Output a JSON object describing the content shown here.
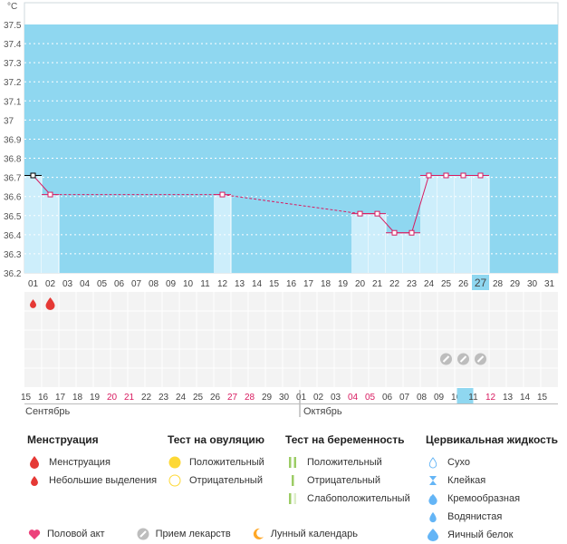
{
  "chart_data": {
    "type": "line",
    "unit_label": "°C",
    "ylim": [
      36.2,
      37.5
    ],
    "yticks": [
      "37.5",
      "37.4",
      "37.3",
      "37.2",
      "37.1",
      "37",
      "36.9",
      "36.8",
      "36.7",
      "36.6",
      "36.5",
      "36.4",
      "36.3",
      "36.2"
    ],
    "day_labels": [
      "01",
      "02",
      "03",
      "04",
      "05",
      "06",
      "07",
      "08",
      "09",
      "10",
      "11",
      "12",
      "13",
      "14",
      "15",
      "16",
      "17",
      "18",
      "19",
      "20",
      "21",
      "22",
      "23",
      "24",
      "25",
      "26",
      "27",
      "28",
      "29",
      "30",
      "31"
    ],
    "highlight_day": "27",
    "date_labels": [
      {
        "t": "15",
        "red": false
      },
      {
        "t": "16",
        "red": false
      },
      {
        "t": "17",
        "red": false
      },
      {
        "t": "18",
        "red": false
      },
      {
        "t": "19",
        "red": false
      },
      {
        "t": "20",
        "red": true
      },
      {
        "t": "21",
        "red": true
      },
      {
        "t": "22",
        "red": false
      },
      {
        "t": "23",
        "red": false
      },
      {
        "t": "24",
        "red": false
      },
      {
        "t": "25",
        "red": false
      },
      {
        "t": "26",
        "red": false
      },
      {
        "t": "27",
        "red": true
      },
      {
        "t": "28",
        "red": true
      },
      {
        "t": "29",
        "red": false
      },
      {
        "t": "30",
        "red": false
      },
      {
        "t": "01",
        "red": false
      },
      {
        "t": "02",
        "red": false
      },
      {
        "t": "03",
        "red": false
      },
      {
        "t": "04",
        "red": true
      },
      {
        "t": "05",
        "red": true
      },
      {
        "t": "06",
        "red": false
      },
      {
        "t": "07",
        "red": false
      },
      {
        "t": "08",
        "red": false
      },
      {
        "t": "09",
        "red": false
      },
      {
        "t": "10",
        "red": false
      },
      {
        "t": "11",
        "red": false
      },
      {
        "t": "12",
        "red": true
      },
      {
        "t": "13",
        "red": false
      },
      {
        "t": "14",
        "red": false
      },
      {
        "t": "15",
        "red": false
      }
    ],
    "highlight_date_index": 26,
    "month_left": "Сентябрь",
    "month_right": "Октябрь",
    "points": [
      {
        "day": 1,
        "temp": 36.71
      },
      {
        "day": 2,
        "temp": 36.61
      },
      {
        "day": 12,
        "temp": 36.61
      },
      {
        "day": 20,
        "temp": 36.51
      },
      {
        "day": 21,
        "temp": 36.51
      },
      {
        "day": 22,
        "temp": 36.41
      },
      {
        "day": 23,
        "temp": 36.41
      },
      {
        "day": 24,
        "temp": 36.71
      },
      {
        "day": 25,
        "temp": 36.71
      },
      {
        "day": 26,
        "temp": 36.71
      },
      {
        "day": 27,
        "temp": 36.71
      }
    ],
    "dashed_segments": [
      [
        2,
        12
      ],
      [
        12,
        20
      ]
    ],
    "bleeding_days": [
      {
        "day": 1,
        "size": "small"
      },
      {
        "day": 2,
        "size": "large"
      }
    ],
    "medication_days": [
      25,
      26,
      27
    ],
    "colors": {
      "bg": "#8fd7f0",
      "bar": "#cdeefb",
      "line": "#d81b60",
      "highlight": "#8fd7f0",
      "red_text": "#d81b60",
      "blood": "#e53935"
    }
  },
  "legend": {
    "menstruation": {
      "title": "Менструация",
      "items": [
        "Менструация",
        "Небольшие выделения"
      ]
    },
    "ovulation": {
      "title": "Тест на овуляцию",
      "items": [
        "Положительный",
        "Отрицательный"
      ]
    },
    "pregnancy": {
      "title": "Тест на беременность",
      "items": [
        "Положительный",
        "Отрицательный",
        "Слабоположительный"
      ]
    },
    "cervical": {
      "title": "Цервикальная жидкость",
      "items": [
        "Сухо",
        "Клейкая",
        "Кремообразная",
        "Водянистая",
        "Яичный белок"
      ]
    },
    "bottom": [
      "Половой акт",
      "Прием лекарств",
      "Лунный календарь"
    ]
  }
}
